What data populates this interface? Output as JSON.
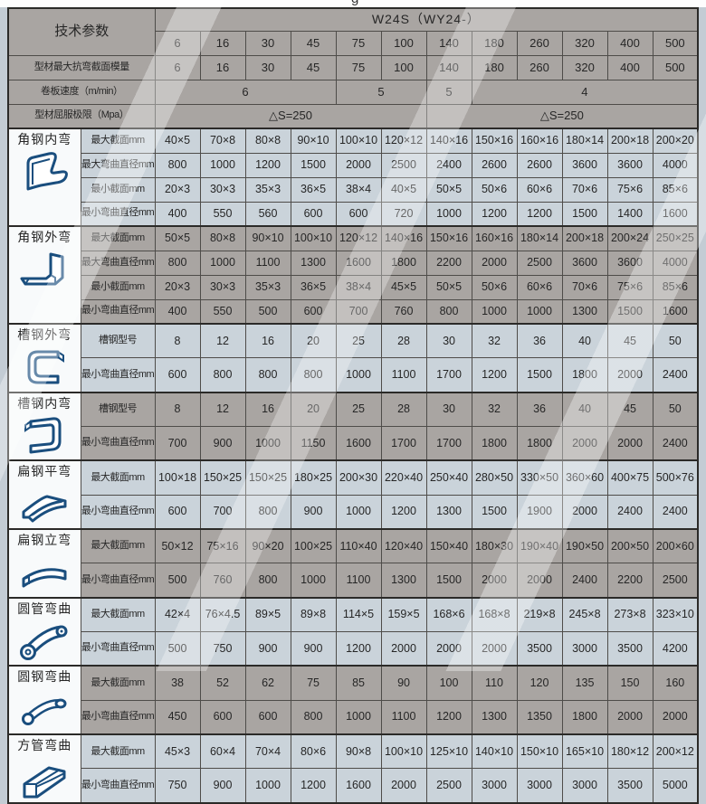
{
  "page": {
    "cropped_text_fragment": "g"
  },
  "header": {
    "param_label": "技术参数",
    "model": "W24S（WY24-）",
    "columns": [
      "6",
      "16",
      "30",
      "45",
      "75",
      "100",
      "140",
      "180",
      "260",
      "320",
      "400",
      "500"
    ]
  },
  "spec_rows": [
    {
      "label": "型材最大抗弯截面模量",
      "cells": [
        {
          "text": "6",
          "span": 1
        },
        {
          "text": "16",
          "span": 1
        },
        {
          "text": "30",
          "span": 1
        },
        {
          "text": "45",
          "span": 1
        },
        {
          "text": "75",
          "span": 1
        },
        {
          "text": "100",
          "span": 1
        },
        {
          "text": "140",
          "span": 1
        },
        {
          "text": "180",
          "span": 1
        },
        {
          "text": "260",
          "span": 1
        },
        {
          "text": "320",
          "span": 1
        },
        {
          "text": "400",
          "span": 1
        },
        {
          "text": "500",
          "span": 1
        }
      ]
    },
    {
      "label": "卷板速度（m/min）",
      "cells": [
        {
          "text": "6",
          "span": 4
        },
        {
          "text": "5",
          "span": 2
        },
        {
          "text": "5",
          "span": 1
        },
        {
          "text": "4",
          "span": 5
        }
      ]
    },
    {
      "label": "型材屈服极限（Mpa）",
      "cells": [
        {
          "text": "△S=250",
          "span": 6
        },
        {
          "text": "△S=250",
          "span": 6
        }
      ]
    }
  ],
  "groups": [
    {
      "name": "角钢内弯",
      "icon": "angle-inner-bend-icon",
      "shade": "light",
      "rows": [
        {
          "label": "最大截面mm",
          "values": [
            "40×5",
            "70×8",
            "80×8",
            "90×10",
            "100×10",
            "120×12",
            "140×16",
            "150×16",
            "160×16",
            "180×14",
            "200×18",
            "200×20"
          ]
        },
        {
          "label": "最大弯曲直径mm",
          "values": [
            "800",
            "1000",
            "1200",
            "1500",
            "2000",
            "2500",
            "2400",
            "2600",
            "2600",
            "3600",
            "3600",
            "4000"
          ]
        },
        {
          "label": "最小截面mm",
          "values": [
            "20×3",
            "30×3",
            "35×3",
            "36×5",
            "38×4",
            "40×5",
            "50×5",
            "50×6",
            "60×6",
            "70×6",
            "75×6",
            "85×6"
          ]
        },
        {
          "label": "最小弯曲直径mm",
          "values": [
            "400",
            "550",
            "560",
            "600",
            "600",
            "720",
            "1000",
            "1200",
            "1200",
            "1500",
            "1400",
            "1600"
          ]
        }
      ]
    },
    {
      "name": "角钢外弯",
      "icon": "angle-outer-bend-icon",
      "shade": "dark",
      "rows": [
        {
          "label": "最大截面mm",
          "values": [
            "50×5",
            "80×8",
            "90×10",
            "100×10",
            "120×12",
            "140×16",
            "150×16",
            "160×16",
            "180×14",
            "200×18",
            "200×24",
            "250×25"
          ]
        },
        {
          "label": "最大弯曲直径mm",
          "values": [
            "800",
            "1000",
            "1100",
            "1300",
            "1600",
            "1800",
            "2200",
            "2000",
            "2500",
            "3600",
            "3600",
            "4000"
          ]
        },
        {
          "label": "最小截面mm",
          "values": [
            "20×3",
            "30×3",
            "35×3",
            "36×5",
            "38×4",
            "45×5",
            "50×5",
            "50×6",
            "60×6",
            "70×6",
            "75×6",
            "85×6"
          ]
        },
        {
          "label": "最小弯曲直径mm",
          "values": [
            "400",
            "550",
            "500",
            "600",
            "700",
            "760",
            "800",
            "1000",
            "1000",
            "1300",
            "1500",
            "1600"
          ]
        }
      ]
    },
    {
      "name": "槽钢外弯",
      "icon": "channel-outer-bend-icon",
      "shade": "light",
      "rows": [
        {
          "label": "槽钢型号",
          "values": [
            "8",
            "12",
            "16",
            "20",
            "25",
            "28",
            "30",
            "32",
            "36",
            "40",
            "45",
            "50"
          ]
        },
        {
          "label": "最小弯曲直径mm",
          "values": [
            "600",
            "800",
            "800",
            "800",
            "1000",
            "1100",
            "1700",
            "1200",
            "1500",
            "1800",
            "2000",
            "2400"
          ]
        }
      ]
    },
    {
      "name": "槽钢内弯",
      "icon": "channel-inner-bend-icon",
      "shade": "dark",
      "rows": [
        {
          "label": "槽钢型号",
          "values": [
            "8",
            "12",
            "16",
            "20",
            "25",
            "28",
            "30",
            "32",
            "36",
            "40",
            "45",
            "50"
          ]
        },
        {
          "label": "最小弯曲直径mm",
          "values": [
            "700",
            "900",
            "1000",
            "1150",
            "1600",
            "1700",
            "1700",
            "1800",
            "1800",
            "2000",
            "2000",
            "2400"
          ]
        }
      ]
    },
    {
      "name": "扁钢平弯",
      "icon": "flat-bar-flat-bend-icon",
      "shade": "light",
      "rows": [
        {
          "label": "最大截面mm",
          "values": [
            "100×18",
            "150×25",
            "150×25",
            "180×25",
            "200×30",
            "220×40",
            "250×40",
            "280×50",
            "330×50",
            "360×60",
            "400×75",
            "500×76"
          ]
        },
        {
          "label": "最小弯曲直径mm",
          "values": [
            "600",
            "700",
            "800",
            "900",
            "1000",
            "1200",
            "1300",
            "1500",
            "1900",
            "2000",
            "2400",
            "2400"
          ]
        }
      ]
    },
    {
      "name": "扁钢立弯",
      "icon": "flat-bar-edge-bend-icon",
      "shade": "dark",
      "rows": [
        {
          "label": "最大截面mm",
          "values": [
            "50×12",
            "75×16",
            "90×20",
            "100×25",
            "110×40",
            "120×40",
            "150×40",
            "180×30",
            "190×40",
            "190×50",
            "200×50",
            "200×60"
          ]
        },
        {
          "label": "最小弯曲直径mm",
          "values": [
            "500",
            "760",
            "800",
            "1000",
            "1100",
            "1300",
            "1500",
            "2000",
            "2000",
            "2400",
            "2200",
            "2500"
          ]
        }
      ]
    },
    {
      "name": "圆管弯曲",
      "icon": "pipe-bend-icon",
      "shade": "light",
      "rows": [
        {
          "label": "最大截面mm",
          "values": [
            "42×4",
            "76×4.5",
            "89×5",
            "89×8",
            "114×5",
            "159×5",
            "168×6",
            "168×8",
            "219×8",
            "245×8",
            "273×8",
            "323×10"
          ]
        },
        {
          "label": "最小弯曲直径mm",
          "values": [
            "500",
            "750",
            "900",
            "900",
            "1200",
            "2000",
            "2000",
            "2000",
            "3500",
            "3000",
            "3500",
            "4200"
          ]
        }
      ]
    },
    {
      "name": "圆钢弯曲",
      "icon": "round-bar-bend-icon",
      "shade": "dark",
      "rows": [
        {
          "label": "最大截面mm",
          "values": [
            "38",
            "52",
            "62",
            "75",
            "85",
            "90",
            "100",
            "110",
            "120",
            "135",
            "150",
            "160"
          ]
        },
        {
          "label": "最小弯曲直径mm",
          "values": [
            "450",
            "600",
            "600",
            "800",
            "1000",
            "1100",
            "1200",
            "1300",
            "1350",
            "1800",
            "2000",
            "2000"
          ]
        }
      ]
    },
    {
      "name": "方管弯曲",
      "icon": "square-tube-bend-icon",
      "shade": "light",
      "rows": [
        {
          "label": "最大截面mm",
          "values": [
            "45×3",
            "60×4",
            "70×4",
            "80×6",
            "90×8",
            "100×10",
            "125×10",
            "140×10",
            "150×10",
            "165×10",
            "180×12",
            "200×12"
          ]
        },
        {
          "label": "最小弯曲直径mm",
          "values": [
            "750",
            "900",
            "1000",
            "1200",
            "1600",
            "2000",
            "2500",
            "3000",
            "3000",
            "3000",
            "3500",
            "5000"
          ]
        }
      ]
    }
  ],
  "colors": {
    "background": "#c3ccd4",
    "row_light": "#cad3da",
    "row_dark": "#a9a5a2",
    "icon_stroke": "#1a4e7e",
    "border": "#2b2a28"
  }
}
